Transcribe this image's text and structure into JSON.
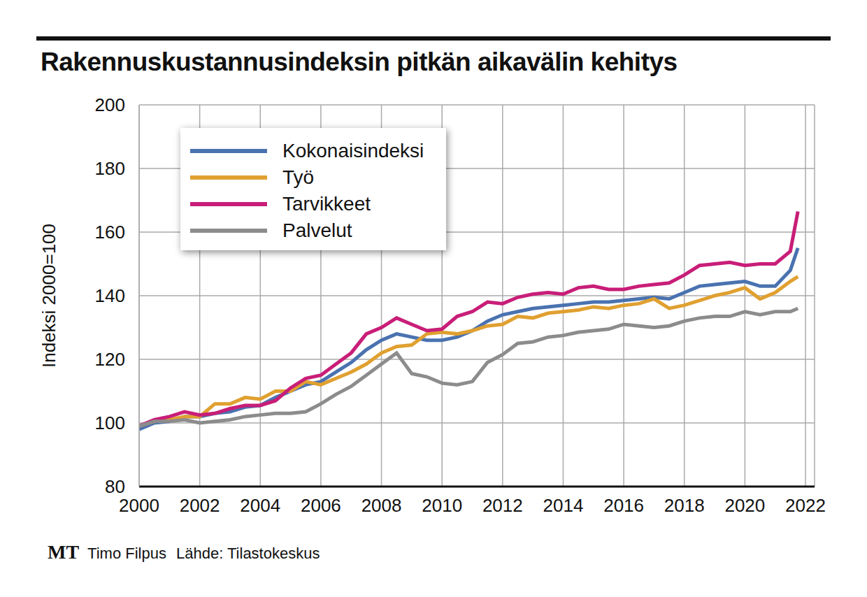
{
  "chart_data": {
    "type": "line",
    "title": "Rakennuskustannusindeksin pitkän aikavälin kehitys",
    "y_label": "Indeksi 2000=100",
    "logo": "MT",
    "credit": "Timo Filpus",
    "source": "Lähde: Tilastokeskus",
    "x": [
      2000,
      2000.5,
      2001,
      2001.5,
      2002,
      2002.5,
      2003,
      2003.5,
      2004,
      2004.5,
      2005,
      2005.5,
      2006,
      2006.5,
      2007,
      2007.5,
      2008,
      2008.5,
      2009,
      2009.5,
      2010,
      2010.5,
      2011,
      2011.5,
      2012,
      2012.5,
      2013,
      2013.5,
      2014,
      2014.5,
      2015,
      2015.5,
      2016,
      2016.5,
      2017,
      2017.5,
      2018,
      2018.5,
      2019,
      2019.5,
      2020,
      2020.5,
      2021,
      2021.5,
      2021.75
    ],
    "series": [
      {
        "name": "Kokonaisindeksi",
        "color": "#4a72b0",
        "values": [
          98,
          100,
          100.5,
          102,
          102,
          103,
          103.5,
          105,
          105.5,
          108,
          110,
          112,
          113,
          116,
          119,
          123,
          126,
          128,
          127,
          126,
          126,
          127,
          129,
          132,
          134,
          135,
          136,
          136.5,
          137,
          137.5,
          138,
          138,
          138.5,
          139,
          139.5,
          139,
          141,
          143,
          143.5,
          144,
          144.5,
          143,
          143,
          148,
          155
        ]
      },
      {
        "name": "Työ",
        "color": "#e0a030",
        "values": [
          99,
          100.5,
          101,
          102,
          102,
          106,
          106,
          108,
          107.5,
          110,
          110,
          113,
          112,
          114,
          116,
          118.5,
          122,
          124,
          124.5,
          128,
          128.5,
          128,
          129,
          130.5,
          131,
          133.5,
          133,
          134.5,
          135,
          135.5,
          136.5,
          136,
          137,
          137.5,
          139,
          136,
          137,
          138.5,
          140,
          141,
          142.5,
          139,
          141,
          144.5,
          146
        ]
      },
      {
        "name": "Tarvikkeet",
        "color": "#c81e78",
        "values": [
          99,
          101,
          102,
          103.5,
          102.5,
          103,
          104.5,
          105.5,
          105.5,
          107,
          111,
          114,
          115,
          118.5,
          122,
          128,
          130,
          133,
          131,
          129,
          129.5,
          133.5,
          135,
          138,
          137.5,
          139.5,
          140.5,
          141,
          140.5,
          142.5,
          143,
          142,
          142,
          143,
          143.5,
          144,
          146.5,
          149.5,
          150,
          150.5,
          149.5,
          150,
          150,
          154,
          166.5
        ]
      },
      {
        "name": "Palvelut",
        "color": "#8c8c8c",
        "values": [
          99,
          100.5,
          100.5,
          101,
          100,
          100.5,
          101,
          102,
          102.5,
          103,
          103,
          103.5,
          106,
          109,
          111.5,
          115,
          118.5,
          122,
          115.5,
          114.5,
          112.5,
          112,
          113,
          119,
          121.5,
          125,
          125.5,
          127,
          127.5,
          128.5,
          129,
          129.5,
          131,
          130.5,
          130,
          130.5,
          132,
          133,
          133.5,
          133.5,
          135,
          134,
          135,
          135,
          136
        ]
      }
    ],
    "xlim": [
      2000,
      2022.3
    ],
    "xticks": [
      2000,
      2002,
      2004,
      2006,
      2008,
      2010,
      2012,
      2014,
      2016,
      2018,
      2020,
      2022
    ],
    "ylim": [
      80,
      200
    ],
    "yticks": [
      80,
      100,
      120,
      140,
      160,
      180,
      200
    ],
    "grid": true,
    "legend": "upper left"
  }
}
